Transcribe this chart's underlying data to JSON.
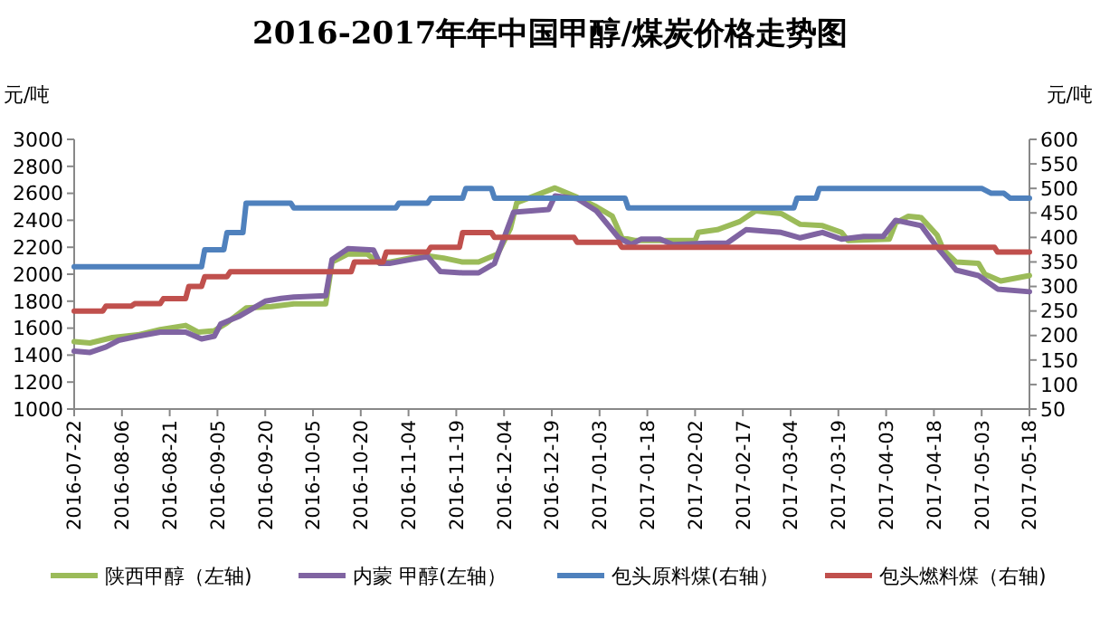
{
  "chart_data": {
    "type": "line",
    "title": "2016-2017年年中国甲醇/煤炭价格走势图",
    "ylabel": "元/吨",
    "y2label": "元/吨",
    "xlim": [
      "2016-07-22",
      "2017-05-18"
    ],
    "xticks": [
      "2016-07-22",
      "2016-08-06",
      "2016-08-21",
      "2016-09-05",
      "2016-09-20",
      "2016-10-05",
      "2016-10-20",
      "2016-11-04",
      "2016-11-19",
      "2016-12-04",
      "2016-12-19",
      "2017-01-03",
      "2017-01-18",
      "2017-02-02",
      "2017-02-17",
      "2017-03-04",
      "2017-03-19",
      "2017-04-03",
      "2017-04-18",
      "2017-05-03",
      "2017-05-18"
    ],
    "ylim": [
      1000,
      3000
    ],
    "yticks": [
      1000,
      1200,
      1400,
      1600,
      1800,
      2000,
      2200,
      2400,
      2600,
      2800,
      3000
    ],
    "y2lim": [
      50,
      600
    ],
    "y2ticks": [
      50,
      100,
      150,
      200,
      250,
      300,
      350,
      400,
      450,
      500,
      550,
      600
    ],
    "legend": "bottom",
    "series": [
      {
        "name": "陕西甲醇（左轴)",
        "color": "#9bbb59",
        "x": [
          "2016-07-22",
          "2016-07-27",
          "2016-08-03",
          "2016-08-11",
          "2016-08-18",
          "2016-08-26",
          "2016-08-30",
          "2016-09-04",
          "2016-09-08",
          "2016-09-14",
          "2016-09-22",
          "2016-09-29",
          "2016-10-09",
          "2016-10-11",
          "2016-10-16",
          "2016-10-22",
          "2016-10-26",
          "2016-10-29",
          "2016-11-09",
          "2016-11-15",
          "2016-11-21",
          "2016-11-26",
          "2016-12-02",
          "2016-12-06",
          "2016-12-08",
          "2016-12-20",
          "2016-12-27",
          "2017-01-02",
          "2017-01-07",
          "2017-01-10",
          "2017-01-14",
          "2017-01-22",
          "2017-02-02",
          "2017-02-03",
          "2017-02-09",
          "2017-02-16",
          "2017-02-21",
          "2017-03-01",
          "2017-03-07",
          "2017-03-14",
          "2017-03-20",
          "2017-03-22",
          "2017-04-04",
          "2017-04-06",
          "2017-04-10",
          "2017-04-14",
          "2017-04-19",
          "2017-04-21",
          "2017-04-25",
          "2017-05-02",
          "2017-05-04",
          "2017-05-09",
          "2017-05-18"
        ],
        "values": [
          1500,
          1490,
          1530,
          1550,
          1590,
          1620,
          1570,
          1580,
          1640,
          1750,
          1760,
          1780,
          1780,
          2090,
          2150,
          2150,
          2080,
          2090,
          2140,
          2120,
          2090,
          2090,
          2150,
          2340,
          2530,
          2640,
          2570,
          2500,
          2430,
          2270,
          2250,
          2250,
          2250,
          2310,
          2330,
          2390,
          2470,
          2450,
          2370,
          2360,
          2310,
          2250,
          2260,
          2380,
          2430,
          2420,
          2290,
          2180,
          2090,
          2080,
          2000,
          1950,
          1990
        ]
      },
      {
        "name": "内蒙 甲醇(左轴）",
        "color": "#8064a2",
        "x": [
          "2016-07-22",
          "2016-07-27",
          "2016-08-01",
          "2016-08-05",
          "2016-08-11",
          "2016-08-18",
          "2016-08-26",
          "2016-08-31",
          "2016-09-04",
          "2016-09-06",
          "2016-09-12",
          "2016-09-20",
          "2016-09-25",
          "2016-09-29",
          "2016-10-09",
          "2016-10-11",
          "2016-10-16",
          "2016-10-24",
          "2016-10-26",
          "2016-10-29",
          "2016-11-05",
          "2016-11-10",
          "2016-11-14",
          "2016-11-21",
          "2016-11-26",
          "2016-12-01",
          "2016-12-07",
          "2016-12-18",
          "2016-12-20",
          "2016-12-27",
          "2017-01-02",
          "2017-01-09",
          "2017-01-13",
          "2017-01-16",
          "2017-01-22",
          "2017-01-26",
          "2017-02-06",
          "2017-02-12",
          "2017-02-18",
          "2017-03-01",
          "2017-03-07",
          "2017-03-14",
          "2017-03-20",
          "2017-03-27",
          "2017-04-02",
          "2017-04-06",
          "2017-04-14",
          "2017-04-19",
          "2017-04-25",
          "2017-05-02",
          "2017-05-08",
          "2017-05-18"
        ],
        "values": [
          1430,
          1420,
          1460,
          1510,
          1540,
          1570,
          1570,
          1520,
          1540,
          1630,
          1690,
          1800,
          1820,
          1830,
          1840,
          2110,
          2190,
          2180,
          2080,
          2080,
          2110,
          2130,
          2020,
          2010,
          2010,
          2080,
          2460,
          2480,
          2580,
          2560,
          2470,
          2270,
          2220,
          2260,
          2260,
          2220,
          2230,
          2230,
          2330,
          2310,
          2270,
          2310,
          2260,
          2280,
          2280,
          2400,
          2360,
          2200,
          2030,
          1990,
          1890,
          1870
        ]
      },
      {
        "name": "包头原料煤(右轴）",
        "color": "#4f81bd",
        "axis": "y2",
        "x": [
          "2016-07-22",
          "2016-08-31",
          "2016-09-01",
          "2016-09-07",
          "2016-09-08",
          "2016-09-13",
          "2016-09-14",
          "2016-09-28",
          "2016-09-29",
          "2016-10-31",
          "2016-11-01",
          "2016-11-10",
          "2016-11-11",
          "2016-11-21",
          "2016-11-22",
          "2016-11-30",
          "2016-12-01",
          "2017-01-11",
          "2017-01-12",
          "2017-03-05",
          "2017-03-06",
          "2017-03-12",
          "2017-03-13",
          "2017-05-03",
          "2017-05-06",
          "2017-05-10",
          "2017-05-12",
          "2017-05-18"
        ],
        "values": [
          340,
          340,
          375,
          375,
          410,
          410,
          470,
          470,
          460,
          460,
          470,
          470,
          480,
          480,
          500,
          500,
          480,
          480,
          460,
          460,
          480,
          480,
          500,
          500,
          490,
          490,
          480,
          480
        ]
      },
      {
        "name": "包头燃料煤（右轴)",
        "color": "#c0504d",
        "axis": "y2",
        "x": [
          "2016-07-22",
          "2016-07-31",
          "2016-08-01",
          "2016-08-09",
          "2016-08-10",
          "2016-08-18",
          "2016-08-19",
          "2016-08-26",
          "2016-08-27",
          "2016-08-31",
          "2016-09-01",
          "2016-09-08",
          "2016-09-09",
          "2016-10-17",
          "2016-10-18",
          "2016-10-27",
          "2016-10-28",
          "2016-11-10",
          "2016-11-11",
          "2016-11-20",
          "2016-11-21",
          "2016-11-30",
          "2016-12-01",
          "2016-12-26",
          "2016-12-27",
          "2017-01-09",
          "2017-01-10",
          "2017-05-07",
          "2017-05-08",
          "2017-05-18"
        ],
        "values": [
          250,
          250,
          260,
          260,
          265,
          265,
          275,
          275,
          300,
          300,
          320,
          320,
          330,
          330,
          350,
          350,
          370,
          370,
          380,
          380,
          410,
          410,
          400,
          400,
          390,
          390,
          380,
          380,
          370,
          370
        ]
      }
    ]
  }
}
